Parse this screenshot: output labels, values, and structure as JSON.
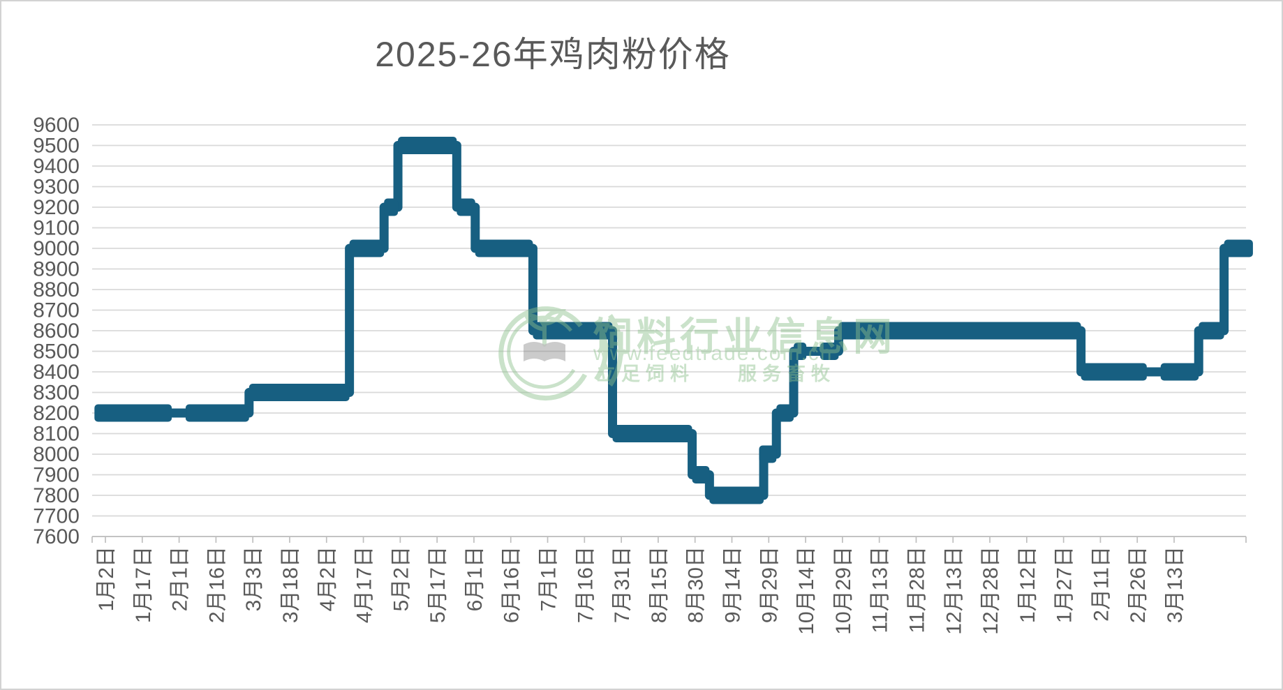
{
  "title": "2025-26年鸡肉粉价格",
  "watermark": {
    "brand_text": "饲料行业信息网",
    "url_text": "www.feedtrade.com.cn",
    "slogan_left": "立足饲料",
    "slogan_right": "服务畜牧",
    "green": "#8cbf8c",
    "book_gray": "#6f6f6f"
  },
  "chart_data": {
    "type": "line",
    "title": "2025-26年鸡肉粉价格",
    "ylabel": "",
    "xlabel": "",
    "ylim": [
      7600,
      9600
    ],
    "y_step": 100,
    "grid": true,
    "legend": "none",
    "y_ticks": [
      "9600",
      "9500",
      "9400",
      "9300",
      "9200",
      "9100",
      "9000",
      "8900",
      "8800",
      "8700",
      "8600",
      "8500",
      "8400",
      "8300",
      "8200",
      "8100",
      "8000",
      "7900",
      "7800",
      "7700",
      "7600"
    ],
    "x_tick_labels": [
      "1月2日",
      "1月17日",
      "2月1日",
      "2月16日",
      "3月3日",
      "3月18日",
      "4月2日",
      "4月17日",
      "5月2日",
      "5月17日",
      "6月1日",
      "6月16日",
      "7月1日",
      "7月16日",
      "7月31日",
      "8月15日",
      "8月30日",
      "9月14日",
      "9月29日",
      "10月14日",
      "10月29日",
      "11月13日",
      "11月28日",
      "12月13日",
      "12月28日",
      "1月12日",
      "1月27日",
      "2月11日",
      "2月26日",
      "3月13日"
    ],
    "x_label_start_frac": 0.0115,
    "x_label_end_frac": 0.9377,
    "colors": {
      "series": "#175f81",
      "grid": "#d9d9d9",
      "axis_line": "#c3c3c3",
      "tick": "#bfbfbf",
      "axis_text": "#595959",
      "title_text": "#595959"
    },
    "series_step_segments": [
      {
        "v": 8200,
        "x0": 0.002,
        "x1": 0.136,
        "breaks": [
          0.075
        ]
      },
      {
        "v": 8300,
        "x0": 0.136,
        "x1": 0.223,
        "breaks": []
      },
      {
        "v": 9000,
        "x0": 0.223,
        "x1": 0.253,
        "breaks": []
      },
      {
        "v": 9200,
        "x0": 0.253,
        "x1": 0.265,
        "breaks": []
      },
      {
        "v": 9500,
        "x0": 0.265,
        "x1": 0.316,
        "breaks": []
      },
      {
        "v": 9200,
        "x0": 0.316,
        "x1": 0.332,
        "breaks": []
      },
      {
        "v": 9000,
        "x0": 0.332,
        "x1": 0.382,
        "breaks": []
      },
      {
        "v": 8600,
        "x0": 0.382,
        "x1": 0.451,
        "breaks": []
      },
      {
        "v": 8100,
        "x0": 0.451,
        "x1": 0.52,
        "breaks": []
      },
      {
        "v": 7900,
        "x0": 0.52,
        "x1": 0.535,
        "breaks": []
      },
      {
        "v": 7800,
        "x0": 0.535,
        "x1": 0.582,
        "breaks": []
      },
      {
        "v": 8000,
        "x0": 0.578,
        "x1": 0.593,
        "breaks": []
      },
      {
        "v": 8200,
        "x0": 0.593,
        "x1": 0.608,
        "breaks": []
      },
      {
        "v": 8500,
        "x0": 0.608,
        "x1": 0.647,
        "breaks": [
          0.625
        ]
      },
      {
        "v": 8600,
        "x0": 0.647,
        "x1": 0.857,
        "breaks": []
      },
      {
        "v": 8400,
        "x0": 0.857,
        "x1": 0.959,
        "breaks": [
          0.92
        ]
      },
      {
        "v": 8600,
        "x0": 0.959,
        "x1": 0.981,
        "breaks": []
      },
      {
        "v": 9000,
        "x0": 0.981,
        "x1": 1.006,
        "breaks": []
      }
    ]
  }
}
